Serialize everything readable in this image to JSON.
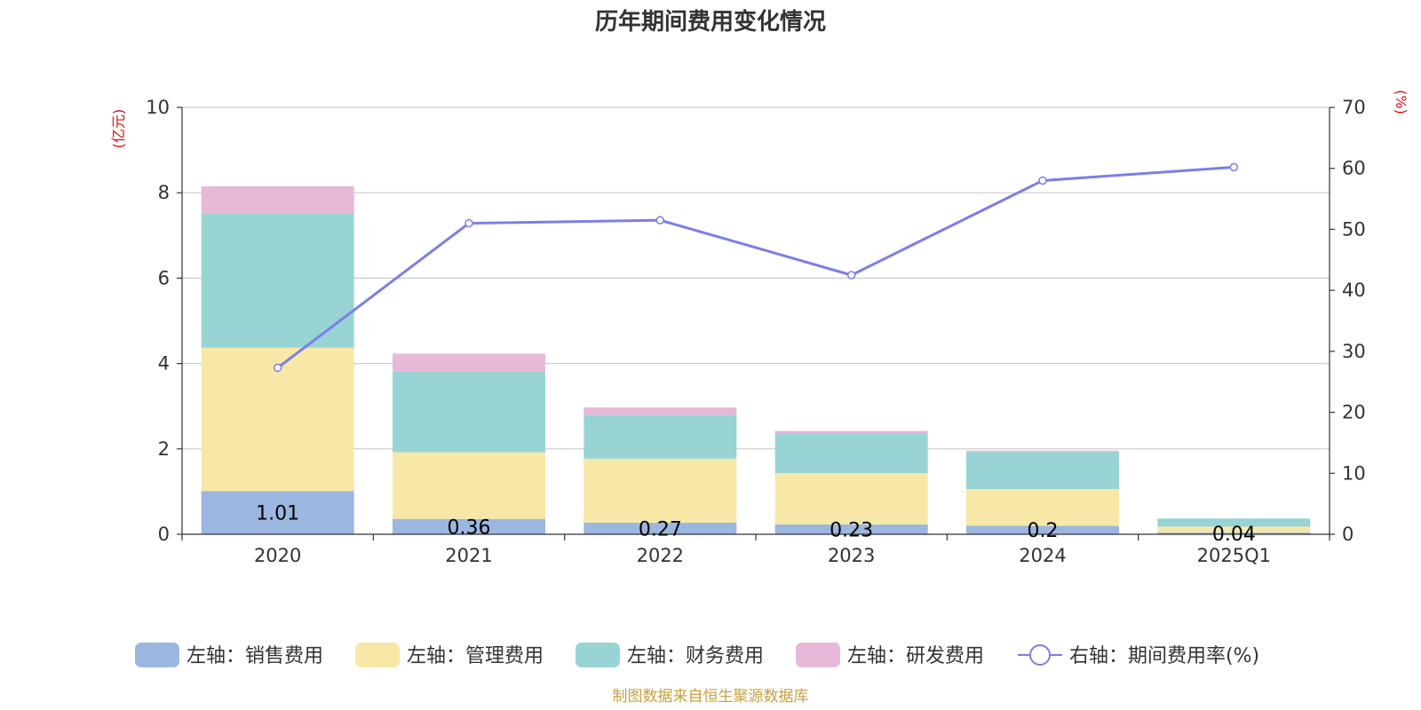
{
  "chart_data": {
    "type": "bar",
    "title": "历年期间费用变化情况",
    "categories": [
      "2020",
      "2021",
      "2022",
      "2023",
      "2024",
      "2025Q1"
    ],
    "left_axis": {
      "unit": "(亿元)",
      "range": [
        0,
        10
      ],
      "ticks": [
        0,
        2,
        4,
        6,
        8,
        10
      ]
    },
    "right_axis": {
      "unit": "(%)",
      "range": [
        0,
        70
      ],
      "ticks": [
        0,
        10,
        20,
        30,
        40,
        50,
        60,
        70
      ]
    },
    "grid": true,
    "legend_position": "bottom",
    "series": [
      {
        "name": "左轴：销售费用",
        "kind": "bar",
        "axis": "left",
        "color": "#9bb7e0",
        "values": [
          1.01,
          0.36,
          0.27,
          0.23,
          0.2,
          0.04
        ],
        "labels": [
          "1.01",
          "0.36",
          "0.27",
          "0.23",
          "0.2",
          "0.04"
        ]
      },
      {
        "name": "左轴：管理费用",
        "kind": "bar",
        "axis": "left",
        "color": "#f8e8a8",
        "values": [
          3.36,
          1.56,
          1.5,
          1.2,
          0.86,
          0.14
        ]
      },
      {
        "name": "左轴：财务费用",
        "kind": "bar",
        "axis": "left",
        "color": "#98d4d4",
        "values": [
          3.15,
          1.89,
          1.03,
          0.94,
          0.87,
          0.19
        ]
      },
      {
        "name": "左轴：研发费用",
        "kind": "bar",
        "axis": "left",
        "color": "#e8b8d8",
        "values": [
          0.63,
          0.42,
          0.17,
          0.05,
          0.03,
          0.0
        ]
      },
      {
        "name": "右轴：期间费用率(%)",
        "kind": "line",
        "axis": "right",
        "color": "#7b7ee8",
        "values": [
          27.3,
          51.0,
          51.5,
          42.5,
          58.0,
          60.2
        ]
      }
    ],
    "source": "制图数据来自恒生聚源数据库"
  }
}
